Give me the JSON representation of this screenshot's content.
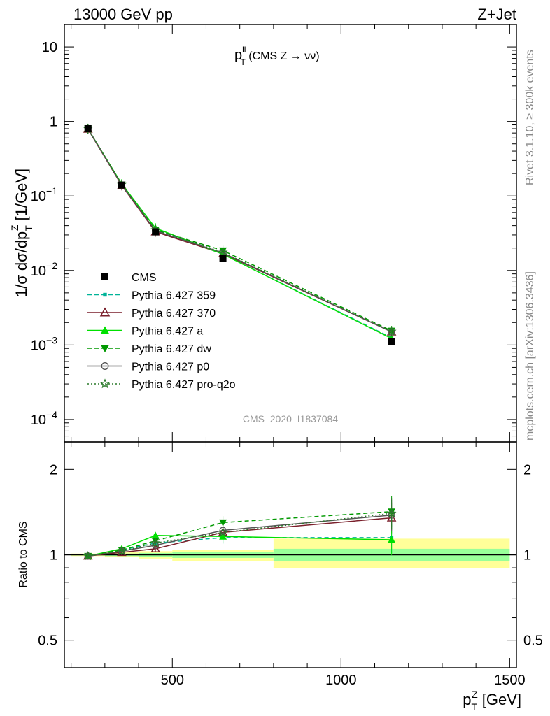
{
  "header": {
    "left": "13000 GeV pp",
    "right": "Z+Jet"
  },
  "side_text": {
    "top": "Rivet 3.1.10, ≥ 300k events",
    "bottom": "mcplots.cern.ch [arXiv:1306.3436]"
  },
  "watermark": "CMS_2020_I1837084",
  "chart_data": [
    {
      "type": "line",
      "panel": "main",
      "title_main": "p",
      "title_sup": "ll",
      "title_sub": "T",
      "title_rest": " (CMS Z → νν)",
      "ylabel": "1/σ dσ/dp_T^Z [1/GeV]",
      "yscale": "log",
      "ylim": [
        5e-05,
        20
      ],
      "xlim": [
        180,
        1520
      ],
      "y_ticks": [
        {
          "value": 0.0001,
          "base": "10",
          "exp": "−4"
        },
        {
          "value": 0.001,
          "base": "10",
          "exp": "−3"
        },
        {
          "value": 0.01,
          "base": "10",
          "exp": "−2"
        },
        {
          "value": 0.1,
          "base": "10",
          "exp": "−1"
        },
        {
          "value": 1,
          "base": "1",
          "exp": ""
        },
        {
          "value": 10,
          "base": "10",
          "exp": ""
        }
      ],
      "x": [
        250,
        350,
        450,
        650,
        1150
      ],
      "data": {
        "name": "CMS",
        "values": [
          0.8,
          0.14,
          0.033,
          0.0145,
          0.0011
        ]
      },
      "series": [
        {
          "name": "Pythia 6.427 359",
          "color": "#00b398",
          "dash": "6,4",
          "marker": "square-small",
          "values": [
            0.8,
            0.14,
            0.036,
            0.0165,
            0.00125
          ]
        },
        {
          "name": "Pythia 6.427 370",
          "color": "#7a1f2b",
          "dash": "",
          "marker": "triangle-open",
          "values": [
            0.79,
            0.138,
            0.033,
            0.0168,
            0.0015
          ]
        },
        {
          "name": "Pythia 6.427 a",
          "color": "#00e000",
          "dash": "",
          "marker": "triangle-filled",
          "values": [
            0.8,
            0.145,
            0.037,
            0.0165,
            0.00122
          ]
        },
        {
          "name": "Pythia 6.427 dw",
          "color": "#009900",
          "dash": "6,4",
          "marker": "triangle-down",
          "values": [
            0.8,
            0.142,
            0.035,
            0.0185,
            0.00155
          ]
        },
        {
          "name": "Pythia 6.427 p0",
          "color": "#555555",
          "dash": "",
          "marker": "circle-open",
          "values": [
            0.8,
            0.14,
            0.034,
            0.0172,
            0.0015
          ]
        },
        {
          "name": "Pythia 6.427 pro-q2o",
          "color": "#2a7a2a",
          "dash": "2,3",
          "marker": "star-open",
          "values": [
            0.8,
            0.142,
            0.035,
            0.0175,
            0.00152
          ]
        }
      ]
    },
    {
      "type": "line",
      "panel": "ratio",
      "ylabel": "Ratio to CMS",
      "yscale": "log",
      "ylim": [
        0.4,
        2.5
      ],
      "xlim": [
        180,
        1520
      ],
      "y_ticks": [
        {
          "value": 0.5,
          "label": "0.5"
        },
        {
          "value": 1,
          "label": "1"
        },
        {
          "value": 2,
          "label": "2"
        }
      ],
      "x_ticks": [
        {
          "value": 500,
          "label": "500"
        },
        {
          "value": 1000,
          "label": "1000"
        },
        {
          "value": 1500,
          "label": "1500"
        }
      ],
      "xlabel": "p_T^Z [GeV]",
      "x": [
        250,
        350,
        450,
        650,
        1150
      ],
      "bands": [
        {
          "x0": 200,
          "x1": 300,
          "inner": [
            0.995,
            1.005
          ],
          "outer": [
            0.99,
            1.01
          ]
        },
        {
          "x0": 300,
          "x1": 400,
          "inner": [
            0.99,
            1.01
          ],
          "outer": [
            0.98,
            1.02
          ]
        },
        {
          "x0": 400,
          "x1": 500,
          "inner": [
            0.985,
            1.015
          ],
          "outer": [
            0.97,
            1.03
          ]
        },
        {
          "x0": 500,
          "x1": 800,
          "inner": [
            0.975,
            1.025
          ],
          "outer": [
            0.95,
            1.04
          ]
        },
        {
          "x0": 800,
          "x1": 1500,
          "inner": [
            0.95,
            1.05
          ],
          "outer": [
            0.9,
            1.14
          ]
        }
      ],
      "series": [
        {
          "name": "Pythia 6.427 359",
          "values": [
            0.99,
            1.04,
            1.1,
            1.15,
            1.15
          ]
        },
        {
          "name": "Pythia 6.427 370",
          "values": [
            0.99,
            1.02,
            1.05,
            1.2,
            1.35
          ]
        },
        {
          "name": "Pythia 6.427 a",
          "values": [
            0.99,
            1.05,
            1.17,
            1.16,
            1.13
          ]
        },
        {
          "name": "Pythia 6.427 dw",
          "values": [
            0.99,
            1.04,
            1.12,
            1.3,
            1.42
          ]
        },
        {
          "name": "Pythia 6.427 p0",
          "values": [
            0.99,
            1.03,
            1.08,
            1.22,
            1.38
          ]
        },
        {
          "name": "Pythia 6.427 pro-q2o",
          "values": [
            0.99,
            1.03,
            1.1,
            1.2,
            1.4
          ]
        }
      ]
    }
  ]
}
